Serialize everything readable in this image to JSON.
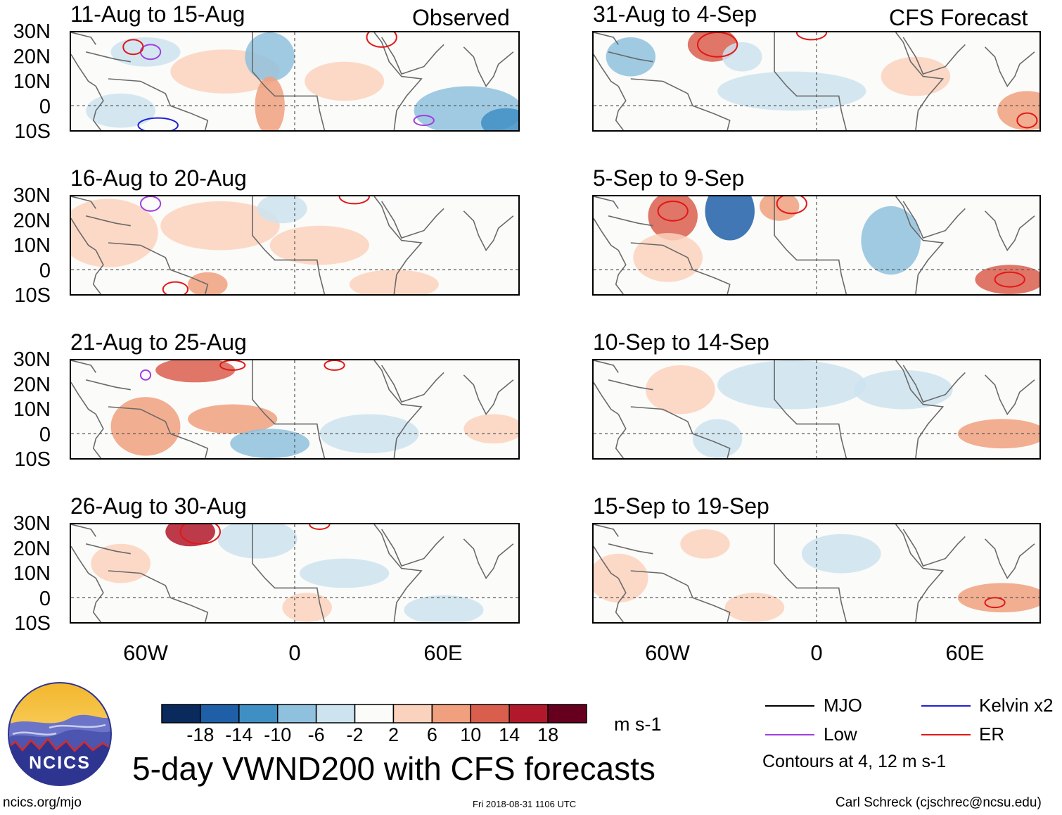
{
  "chart_data": {
    "type": "heatmap",
    "title": "5-day VWND200 with CFS forecasts",
    "variable": "VWND200",
    "units": "m s-1",
    "columns": [
      {
        "label": "Observed",
        "panels": [
          "11-Aug to 15-Aug",
          "16-Aug to 20-Aug",
          "21-Aug to 25-Aug",
          "26-Aug to 30-Aug"
        ]
      },
      {
        "label": "CFS Forecast",
        "panels": [
          "31-Aug to 4-Sep",
          "5-Sep to 9-Sep",
          "10-Sep to 14-Sep",
          "15-Sep to 19-Sep"
        ]
      }
    ],
    "lat_ticks": [
      "30N",
      "20N",
      "10N",
      "0",
      "10S"
    ],
    "lon_ticks": [
      "60W",
      "0",
      "60E"
    ],
    "lon_range": [
      -90,
      90
    ],
    "lat_range": [
      -10,
      30
    ],
    "colorbar": {
      "levels": [
        "-18",
        "-14",
        "-10",
        "-6",
        "-2",
        "2",
        "6",
        "10",
        "14",
        "18"
      ],
      "colors": [
        "#0a2a5e",
        "#1f5fa8",
        "#3f8ec4",
        "#8fc1de",
        "#cde3f0",
        "#fbfbf9",
        "#fbd2bd",
        "#f0a07f",
        "#d95e4d",
        "#b2182b",
        "#67001f"
      ]
    },
    "contour_legend": [
      {
        "label": "MJO",
        "color": "#000000"
      },
      {
        "label": "Kelvin x2",
        "color": "#1f1fd6"
      },
      {
        "label": "Low",
        "color": "#a040e0"
      },
      {
        "label": "ER",
        "color": "#e01818"
      }
    ],
    "contour_note": "Contours at 4, 12 m s-1"
  },
  "branding": {
    "logo_text": "NCICS",
    "url": "ncics.org/mjo"
  },
  "footer": {
    "timestamp": "Fri 2018-08-31 1106 UTC",
    "credit": "Carl Schreck (cjschrec@ncsu.edu)"
  }
}
